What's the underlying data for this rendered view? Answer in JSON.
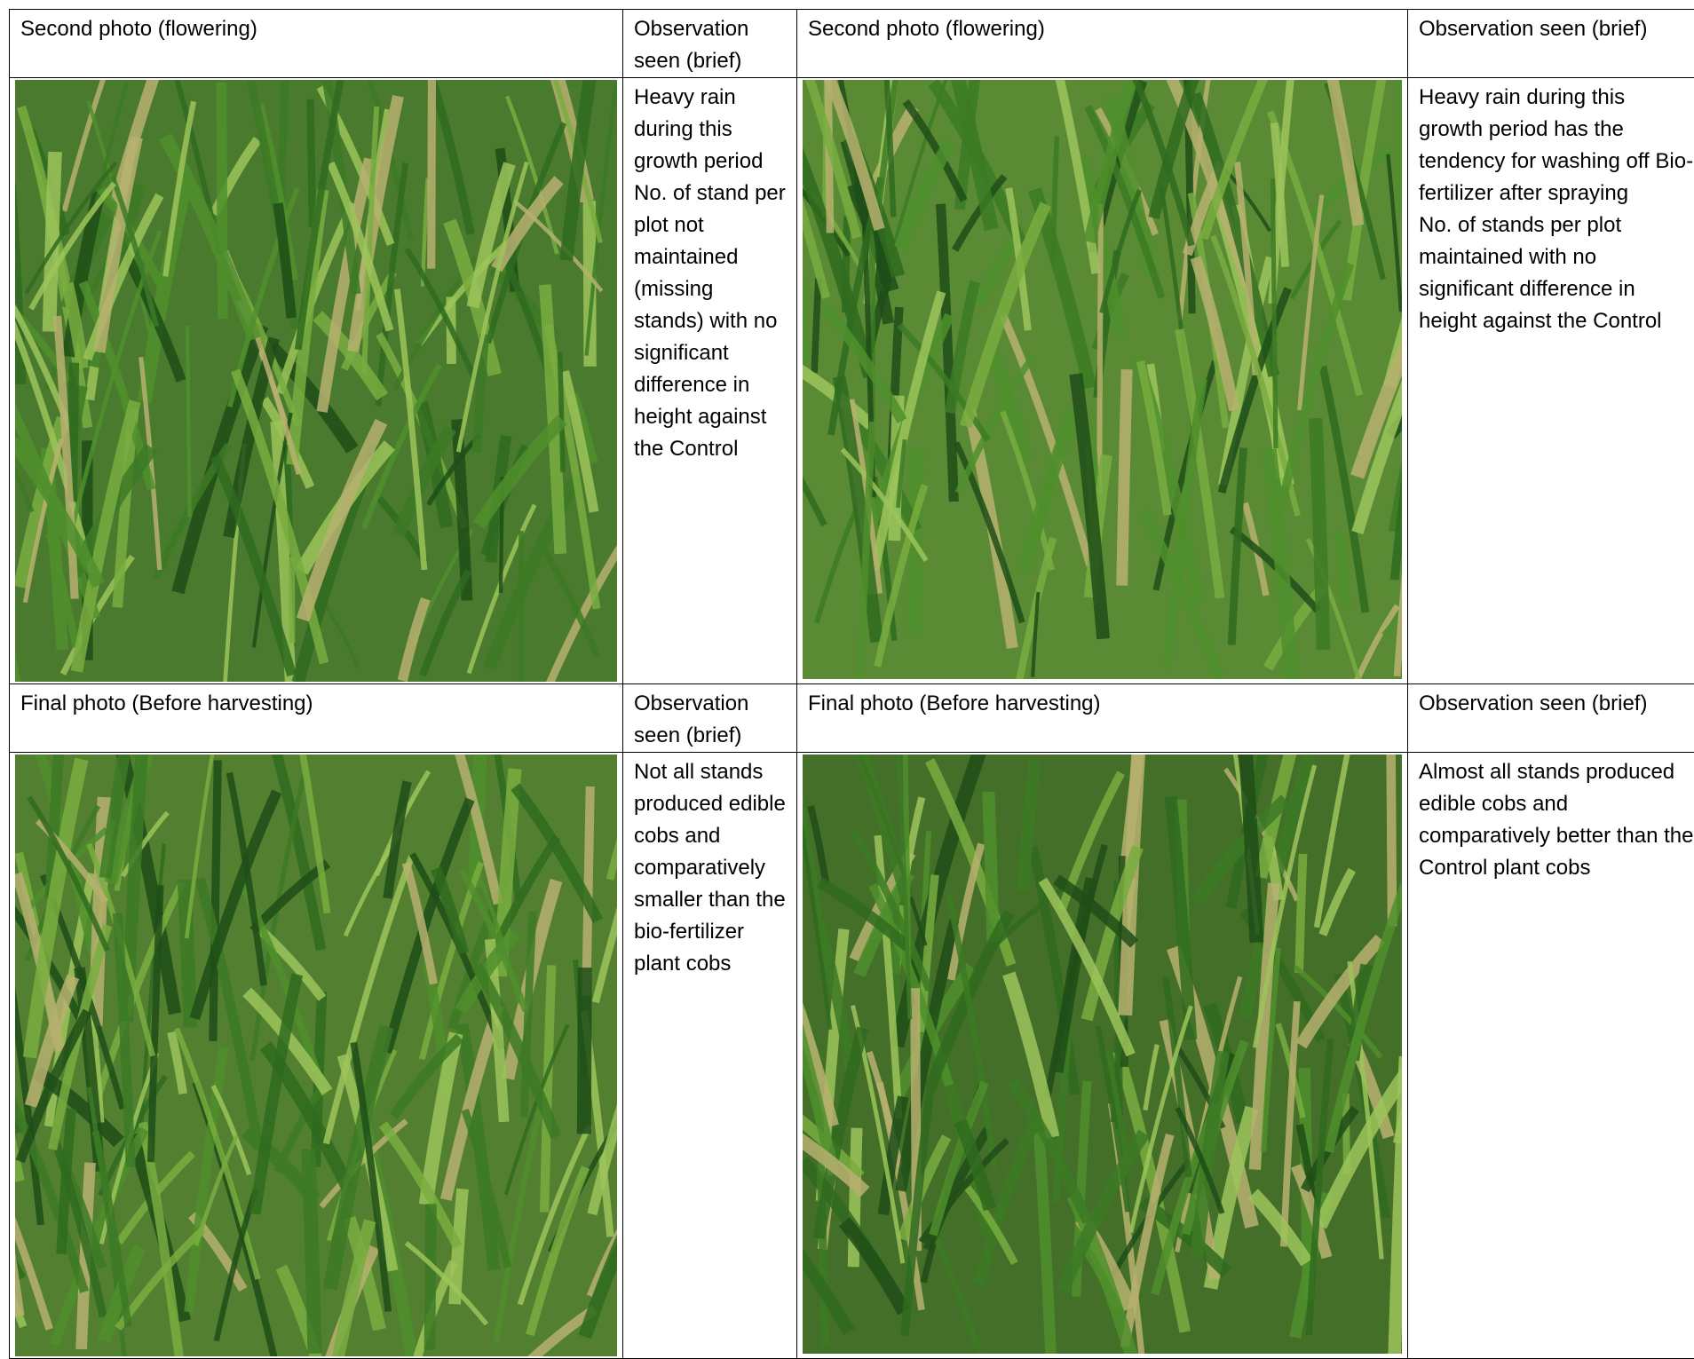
{
  "sections": [
    {
      "headers": [
        "Second photo (flowering)",
        "Observation seen (brief)",
        "Second photo (flowering)",
        "Observation seen (brief)"
      ],
      "observations": [
        [
          "Heavy rain during this growth period",
          "No. of stand per plot not maintained (missing stands) with no significant difference in height against the Control"
        ],
        [
          "Heavy rain during this growth period has the tendency for washing  off Bio-fertilizer  after spraying",
          "No. of stands per plot maintained with no significant difference in height against the Control"
        ]
      ]
    },
    {
      "headers": [
        "Final photo (Before harvesting)",
        "Observation seen (brief)",
        "Final photo (Before harvesting)",
        "Observation seen (brief)"
      ],
      "observations": [
        [
          "Not all stands produced edible cobs and comparatively smaller than the bio-fertilizer plant cobs"
        ],
        [
          "Almost all stands produced edible cobs and comparatively better than the Control plant cobs"
        ]
      ]
    }
  ]
}
